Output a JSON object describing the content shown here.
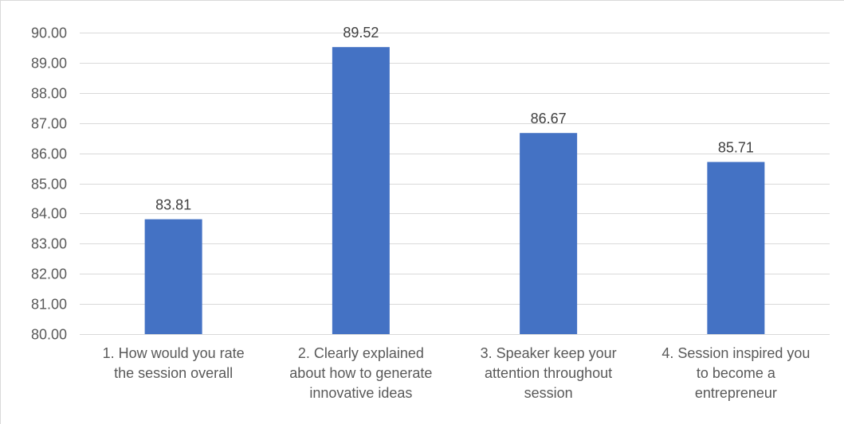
{
  "chart_data": {
    "type": "bar",
    "title": "",
    "xlabel": "",
    "ylabel": "",
    "ylim": [
      80,
      90
    ],
    "ytick_step": 1,
    "ytick_labels": [
      "80.00",
      "81.00",
      "82.00",
      "83.00",
      "84.00",
      "85.00",
      "86.00",
      "87.00",
      "88.00",
      "89.00",
      "90.00"
    ],
    "grid": true,
    "legend": "none",
    "bar_color": "#4472C4",
    "categories": [
      [
        "1. How would you rate",
        "the session overall"
      ],
      [
        "2. Clearly explained",
        "about how to generate",
        "innovative ideas"
      ],
      [
        "3. Speaker keep your",
        "attention throughout",
        "session"
      ],
      [
        "4. Session inspired you",
        "to become a",
        "entrepreneur"
      ]
    ],
    "values": [
      83.81,
      89.52,
      86.67,
      85.71
    ],
    "data_labels": [
      "83.81",
      "89.52",
      "86.67",
      "85.71"
    ]
  }
}
